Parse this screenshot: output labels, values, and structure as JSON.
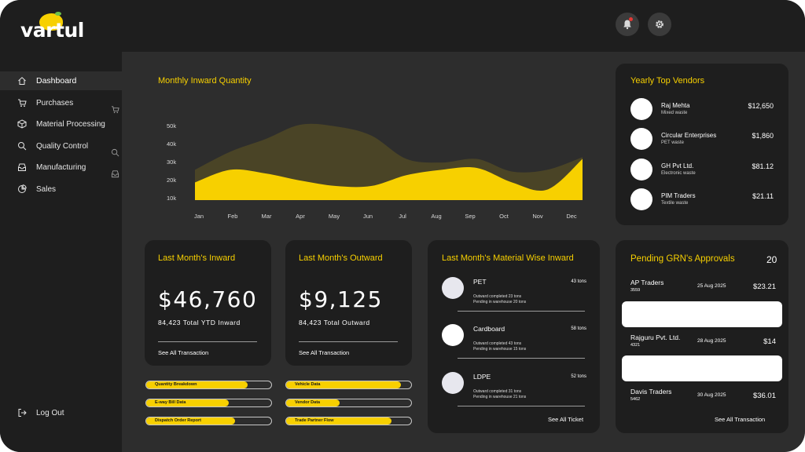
{
  "brand": {
    "logo_text": "vartul"
  },
  "sidebar": {
    "items": [
      {
        "label": "Dashboard",
        "icon": "home-icon",
        "active": true
      },
      {
        "label": "Purchases",
        "icon": "cart-icon"
      },
      {
        "label": "Material Processing",
        "icon": "box-icon"
      },
      {
        "label": "Quality Control",
        "icon": "search-icon"
      },
      {
        "label": "Manufacturing",
        "icon": "inbox-icon"
      },
      {
        "label": "Sales",
        "icon": "pie-icon"
      }
    ],
    "logout_label": "Log Out"
  },
  "header": {
    "notification_icon": "bell-icon",
    "settings_icon": "gear-icon"
  },
  "monthly_chart": {
    "title": "Monthly Inward Quantity",
    "chart_data": {
      "type": "area",
      "title": "Monthly Inward Quantity",
      "x": [
        "Jan",
        "Feb",
        "Mar",
        "Apr",
        "May",
        "Jun",
        "Jul",
        "Aug",
        "Sep",
        "Oct",
        "Nov",
        "Dec"
      ],
      "y_ticks": [
        "50k",
        "40k",
        "30k",
        "20k",
        "10k"
      ],
      "ylim": [
        5,
        50
      ],
      "series": [
        {
          "values": [
            26,
            36,
            43,
            51,
            50,
            45,
            32,
            30,
            32,
            25,
            26,
            33
          ]
        },
        {
          "values": [
            19,
            26,
            24,
            20,
            17,
            17,
            23,
            26,
            27,
            19,
            15,
            32
          ]
        }
      ],
      "grid": false,
      "legend": "none",
      "colors": {
        "back": "#4a4426",
        "front": "#f7d000"
      }
    }
  },
  "top_vendors": {
    "title": "Yearly Top Vendors",
    "items": [
      {
        "name": "Raj Mehta",
        "type": "Mixed waste",
        "amount": "$12,650"
      },
      {
        "name": "Circular Enterprises",
        "type": "PET waste",
        "amount": "$1,860"
      },
      {
        "name": "GH Pvt Ltd.",
        "type": "Electronic waste",
        "amount": "$81.12"
      },
      {
        "name": "PIM Traders",
        "type": "Textile waste",
        "amount": "$21.11"
      }
    ]
  },
  "inward_card": {
    "title": "Last Month's Inward",
    "amount": "$46,760",
    "sub": "84,423 Total YTD Inward",
    "link": "See All Transaction"
  },
  "outward_card": {
    "title": "Last Month's Outward",
    "amount": "$9,125",
    "sub": "84,423 Total Outward",
    "link": "See All Transaction"
  },
  "material_card": {
    "title": "Last Month's Material Wise Inward",
    "items": [
      {
        "name": "PET",
        "tons": "43 tons",
        "line1": "Outward completed 23 tons",
        "line2": "Pending in warehouse 20 tons"
      },
      {
        "name": "Cardboard",
        "tons": "58 tons",
        "line1": "Outward completed 43 tons",
        "line2": "Pending in warehouse 15 tons"
      },
      {
        "name": "LDPE",
        "tons": "52 tons",
        "line1": "Outward completed 31 tons",
        "line2": "Pending in warehouse 21 tons"
      }
    ],
    "link": "See All Ticket"
  },
  "progress_left": [
    {
      "label": "Quantity Breakdown",
      "progress": 0.81
    },
    {
      "label": "E-way Bill Data",
      "progress": 0.66
    },
    {
      "label": "Dispatch Order Report",
      "progress": 0.71
    }
  ],
  "progress_right": [
    {
      "label": "Vehicle Data",
      "progress": 0.92
    },
    {
      "label": "Vendor Data",
      "progress": 0.43
    },
    {
      "label": "Trade Partner Flow",
      "progress": 0.84
    }
  ],
  "grn": {
    "title": "Pending GRN's Approvals",
    "count": "20",
    "items": [
      {
        "name": "AP Traders",
        "id": "3559",
        "date": "25 Aug 2025",
        "amount": "$23.21"
      },
      {
        "name": "Rajguru Pvt. Ltd.",
        "id": "4321",
        "date": "28 Aug 2025",
        "amount": "$14"
      },
      {
        "name": "Davis Traders",
        "id": "5462",
        "date": "30 Aug 2025",
        "amount": "$36.01"
      }
    ],
    "link": "See All Transaction"
  }
}
